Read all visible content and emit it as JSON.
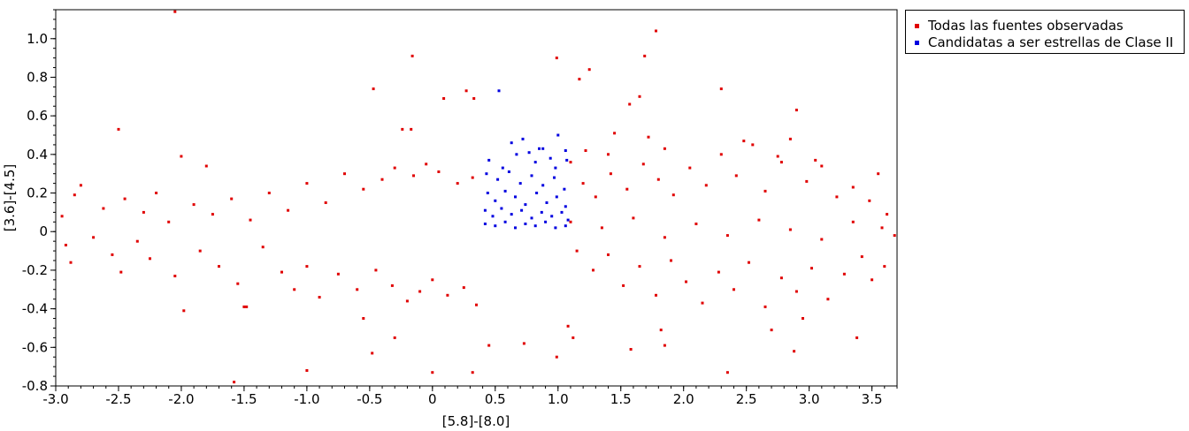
{
  "chart_data": {
    "type": "scatter",
    "title": "",
    "xlabel": "[5.8]-[8.0]",
    "ylabel": "[3.6]-[4.5]",
    "xlim": [
      -3.0,
      3.7
    ],
    "ylim": [
      -0.8,
      1.15
    ],
    "x_ticks": [
      "-3.0",
      "-2.5",
      "-2.0",
      "-1.5",
      "-1.0",
      "-0.5",
      "0",
      "0.5",
      "1.0",
      "1.5",
      "2.0",
      "2.5",
      "3.0",
      "3.5"
    ],
    "y_ticks": [
      "-0.8",
      "-0.6",
      "-0.4",
      "-0.2",
      "0",
      "0.2",
      "0.4",
      "0.6",
      "0.8",
      "1.0"
    ],
    "grid": false,
    "legend_position": "right",
    "series": [
      {
        "name": "Todas las fuentes observadas",
        "color": "#e00000",
        "points": [
          [
            -2.05,
            1.14
          ],
          [
            -0.16,
            0.91
          ],
          [
            0.09,
            0.69
          ],
          [
            0.27,
            0.73
          ],
          [
            0.33,
            0.69
          ],
          [
            -0.47,
            0.74
          ],
          [
            0.99,
            0.9
          ],
          [
            1.25,
            0.84
          ],
          [
            1.17,
            0.79
          ],
          [
            1.78,
            1.04
          ],
          [
            1.69,
            0.91
          ],
          [
            1.57,
            0.66
          ],
          [
            1.65,
            0.7
          ],
          [
            2.3,
            0.74
          ],
          [
            2.9,
            0.63
          ],
          [
            -2.5,
            0.53
          ],
          [
            -0.24,
            0.53
          ],
          [
            -0.17,
            0.53
          ],
          [
            1.45,
            0.51
          ],
          [
            -2.0,
            0.39
          ],
          [
            -1.8,
            0.34
          ],
          [
            -2.95,
            0.08
          ],
          [
            -2.85,
            0.19
          ],
          [
            -2.8,
            0.24
          ],
          [
            -2.62,
            0.12
          ],
          [
            -2.45,
            0.17
          ],
          [
            -2.3,
            0.1
          ],
          [
            -2.2,
            0.2
          ],
          [
            -2.1,
            0.05
          ],
          [
            -1.9,
            0.14
          ],
          [
            -1.75,
            0.09
          ],
          [
            -1.6,
            0.17
          ],
          [
            -1.45,
            0.06
          ],
          [
            -1.3,
            0.2
          ],
          [
            -1.15,
            0.11
          ],
          [
            -1.0,
            0.25
          ],
          [
            -0.85,
            0.15
          ],
          [
            -0.7,
            0.3
          ],
          [
            -0.55,
            0.22
          ],
          [
            -0.4,
            0.27
          ],
          [
            -0.3,
            0.33
          ],
          [
            -0.15,
            0.29
          ],
          [
            -0.05,
            0.35
          ],
          [
            0.05,
            0.31
          ],
          [
            0.2,
            0.25
          ],
          [
            0.32,
            0.28
          ],
          [
            -2.92,
            -0.07
          ],
          [
            -2.88,
            -0.16
          ],
          [
            -2.7,
            -0.03
          ],
          [
            -2.55,
            -0.12
          ],
          [
            -2.48,
            -0.21
          ],
          [
            -2.35,
            -0.05
          ],
          [
            -2.25,
            -0.14
          ],
          [
            -2.05,
            -0.23
          ],
          [
            -1.98,
            -0.41
          ],
          [
            -1.85,
            -0.1
          ],
          [
            -1.7,
            -0.18
          ],
          [
            -1.55,
            -0.27
          ],
          [
            -1.5,
            -0.39
          ],
          [
            -1.35,
            -0.08
          ],
          [
            -1.2,
            -0.21
          ],
          [
            -1.1,
            -0.3
          ],
          [
            -1.0,
            -0.18
          ],
          [
            -0.9,
            -0.34
          ],
          [
            -0.75,
            -0.22
          ],
          [
            -0.6,
            -0.3
          ],
          [
            -0.55,
            -0.45
          ],
          [
            -0.45,
            -0.2
          ],
          [
            -0.32,
            -0.28
          ],
          [
            -0.2,
            -0.36
          ],
          [
            -0.1,
            -0.31
          ],
          [
            0.0,
            -0.25
          ],
          [
            0.12,
            -0.33
          ],
          [
            0.25,
            -0.29
          ],
          [
            0.35,
            -0.38
          ],
          [
            -1.58,
            -0.78
          ],
          [
            -1.0,
            -0.72
          ],
          [
            0.0,
            -0.73
          ],
          [
            0.32,
            -0.73
          ],
          [
            0.45,
            -0.59
          ],
          [
            0.73,
            -0.58
          ],
          [
            0.99,
            -0.65
          ],
          [
            1.08,
            -0.49
          ],
          [
            1.12,
            -0.55
          ],
          [
            1.58,
            -0.61
          ],
          [
            1.85,
            -0.59
          ],
          [
            1.82,
            -0.51
          ],
          [
            2.35,
            -0.73
          ],
          [
            2.7,
            -0.51
          ],
          [
            2.88,
            -0.62
          ],
          [
            3.38,
            -0.55
          ],
          [
            2.95,
            -0.45
          ],
          [
            -0.48,
            -0.63
          ],
          [
            -0.3,
            -0.55
          ],
          [
            -1.48,
            -0.39
          ],
          [
            1.2,
            0.25
          ],
          [
            1.3,
            0.18
          ],
          [
            1.42,
            0.3
          ],
          [
            1.55,
            0.22
          ],
          [
            1.68,
            0.35
          ],
          [
            1.8,
            0.27
          ],
          [
            1.92,
            0.19
          ],
          [
            2.05,
            0.33
          ],
          [
            2.18,
            0.24
          ],
          [
            2.3,
            0.4
          ],
          [
            2.42,
            0.29
          ],
          [
            2.55,
            0.45
          ],
          [
            2.65,
            0.21
          ],
          [
            2.78,
            0.36
          ],
          [
            2.85,
            0.48
          ],
          [
            2.98,
            0.26
          ],
          [
            3.1,
            0.34
          ],
          [
            3.22,
            0.18
          ],
          [
            3.35,
            0.23
          ],
          [
            3.48,
            0.16
          ],
          [
            3.55,
            0.3
          ],
          [
            3.62,
            0.09
          ],
          [
            1.15,
            -0.1
          ],
          [
            1.28,
            -0.2
          ],
          [
            1.4,
            -0.12
          ],
          [
            1.52,
            -0.28
          ],
          [
            1.65,
            -0.18
          ],
          [
            1.78,
            -0.33
          ],
          [
            1.9,
            -0.15
          ],
          [
            2.02,
            -0.26
          ],
          [
            2.15,
            -0.37
          ],
          [
            2.28,
            -0.21
          ],
          [
            2.4,
            -0.3
          ],
          [
            2.52,
            -0.16
          ],
          [
            2.65,
            -0.39
          ],
          [
            2.78,
            -0.24
          ],
          [
            2.9,
            -0.31
          ],
          [
            3.02,
            -0.19
          ],
          [
            3.15,
            -0.35
          ],
          [
            3.28,
            -0.22
          ],
          [
            3.42,
            -0.13
          ],
          [
            3.5,
            -0.25
          ],
          [
            3.6,
            -0.18
          ],
          [
            3.68,
            -0.02
          ],
          [
            1.1,
            0.05
          ],
          [
            1.35,
            0.02
          ],
          [
            1.6,
            0.07
          ],
          [
            1.85,
            -0.03
          ],
          [
            2.1,
            0.04
          ],
          [
            2.35,
            -0.02
          ],
          [
            2.6,
            0.06
          ],
          [
            2.85,
            0.01
          ],
          [
            3.1,
            -0.04
          ],
          [
            3.35,
            0.05
          ],
          [
            3.58,
            0.02
          ],
          [
            1.1,
            0.36
          ],
          [
            1.22,
            0.42
          ],
          [
            1.4,
            0.4
          ],
          [
            1.72,
            0.49
          ],
          [
            1.85,
            0.43
          ],
          [
            2.48,
            0.47
          ],
          [
            2.75,
            0.39
          ],
          [
            3.05,
            0.37
          ]
        ]
      },
      {
        "name": "Candidatas a ser estrellas de Clase II",
        "color": "#0000e0",
        "points": [
          [
            0.53,
            0.73
          ],
          [
            0.72,
            0.48
          ],
          [
            0.85,
            0.43
          ],
          [
            0.88,
            0.43
          ],
          [
            1.0,
            0.5
          ],
          [
            0.63,
            0.46
          ],
          [
            0.77,
            0.41
          ],
          [
            0.94,
            0.38
          ],
          [
            1.06,
            0.42
          ],
          [
            0.45,
            0.37
          ],
          [
            0.56,
            0.33
          ],
          [
            0.67,
            0.4
          ],
          [
            0.82,
            0.36
          ],
          [
            0.98,
            0.33
          ],
          [
            1.07,
            0.37
          ],
          [
            0.43,
            0.3
          ],
          [
            0.52,
            0.27
          ],
          [
            0.61,
            0.31
          ],
          [
            0.7,
            0.25
          ],
          [
            0.79,
            0.29
          ],
          [
            0.88,
            0.24
          ],
          [
            0.97,
            0.28
          ],
          [
            1.05,
            0.22
          ],
          [
            0.44,
            0.2
          ],
          [
            0.5,
            0.16
          ],
          [
            0.58,
            0.21
          ],
          [
            0.66,
            0.18
          ],
          [
            0.74,
            0.14
          ],
          [
            0.83,
            0.2
          ],
          [
            0.91,
            0.15
          ],
          [
            0.99,
            0.18
          ],
          [
            1.06,
            0.13
          ],
          [
            0.42,
            0.11
          ],
          [
            0.48,
            0.08
          ],
          [
            0.55,
            0.12
          ],
          [
            0.63,
            0.09
          ],
          [
            0.71,
            0.11
          ],
          [
            0.79,
            0.07
          ],
          [
            0.87,
            0.1
          ],
          [
            0.95,
            0.08
          ],
          [
            1.03,
            0.1
          ],
          [
            1.08,
            0.06
          ],
          [
            0.42,
            0.04
          ],
          [
            0.5,
            0.03
          ],
          [
            0.58,
            0.05
          ],
          [
            0.66,
            0.02
          ],
          [
            0.74,
            0.04
          ],
          [
            0.82,
            0.03
          ],
          [
            0.9,
            0.05
          ],
          [
            0.98,
            0.02
          ],
          [
            1.06,
            0.03
          ]
        ]
      }
    ]
  }
}
